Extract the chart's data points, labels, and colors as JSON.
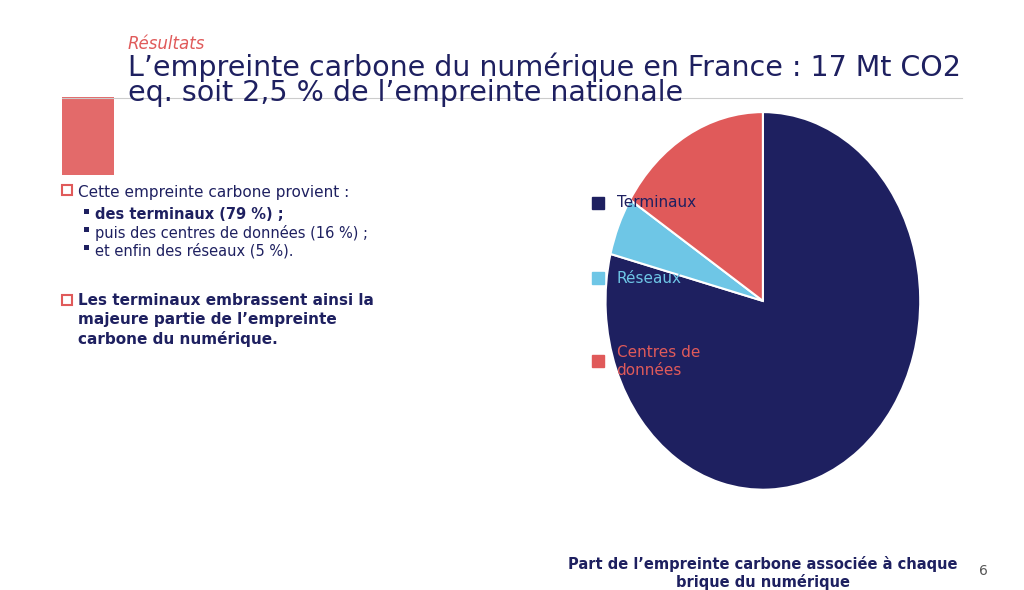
{
  "background_color": "#ffffff",
  "title_label": "Résultats",
  "title_label_color": "#e05a5a",
  "title_main_line1": "L’empreinte carbone du numérique en France : 17 Mt CO2",
  "title_main_line2": "eq. soit 2,5 % de l’empreinte nationale",
  "title_main_color": "#1e2060",
  "red_box_color": "#e05a5a",
  "bullet_header": "Cette empreinte carbone provient :",
  "bullet_items": [
    "des terminaux (79 %) ;",
    "puis des centres de données (16 %) ;",
    "et enfin des réseaux (5 %)."
  ],
  "second_para": "Les terminaux embrassent ainsi la\nmajeure partie de l’empreinte\ncarbone du numérique.",
  "pie_values": [
    79,
    5,
    16
  ],
  "pie_colors": [
    "#1e2060",
    "#6ec6e6",
    "#e05a5a"
  ],
  "pie_legend_labels": [
    "Terminaux",
    "Réseaux",
    "Centres de\ndonnées"
  ],
  "pie_legend_colors": [
    "#1e2060",
    "#6ec6e6",
    "#e05a5a"
  ],
  "pie_startangle": 90,
  "pie_caption_line1": "Part de l’empreinte carbone associée à chaque",
  "pie_caption_line2": "brique du numérique",
  "pie_caption_color": "#1e2060",
  "text_color_dark": "#1e2060",
  "footer_page": "6",
  "checkbox_color": "#e05a5a",
  "separator_color": "#cccccc"
}
